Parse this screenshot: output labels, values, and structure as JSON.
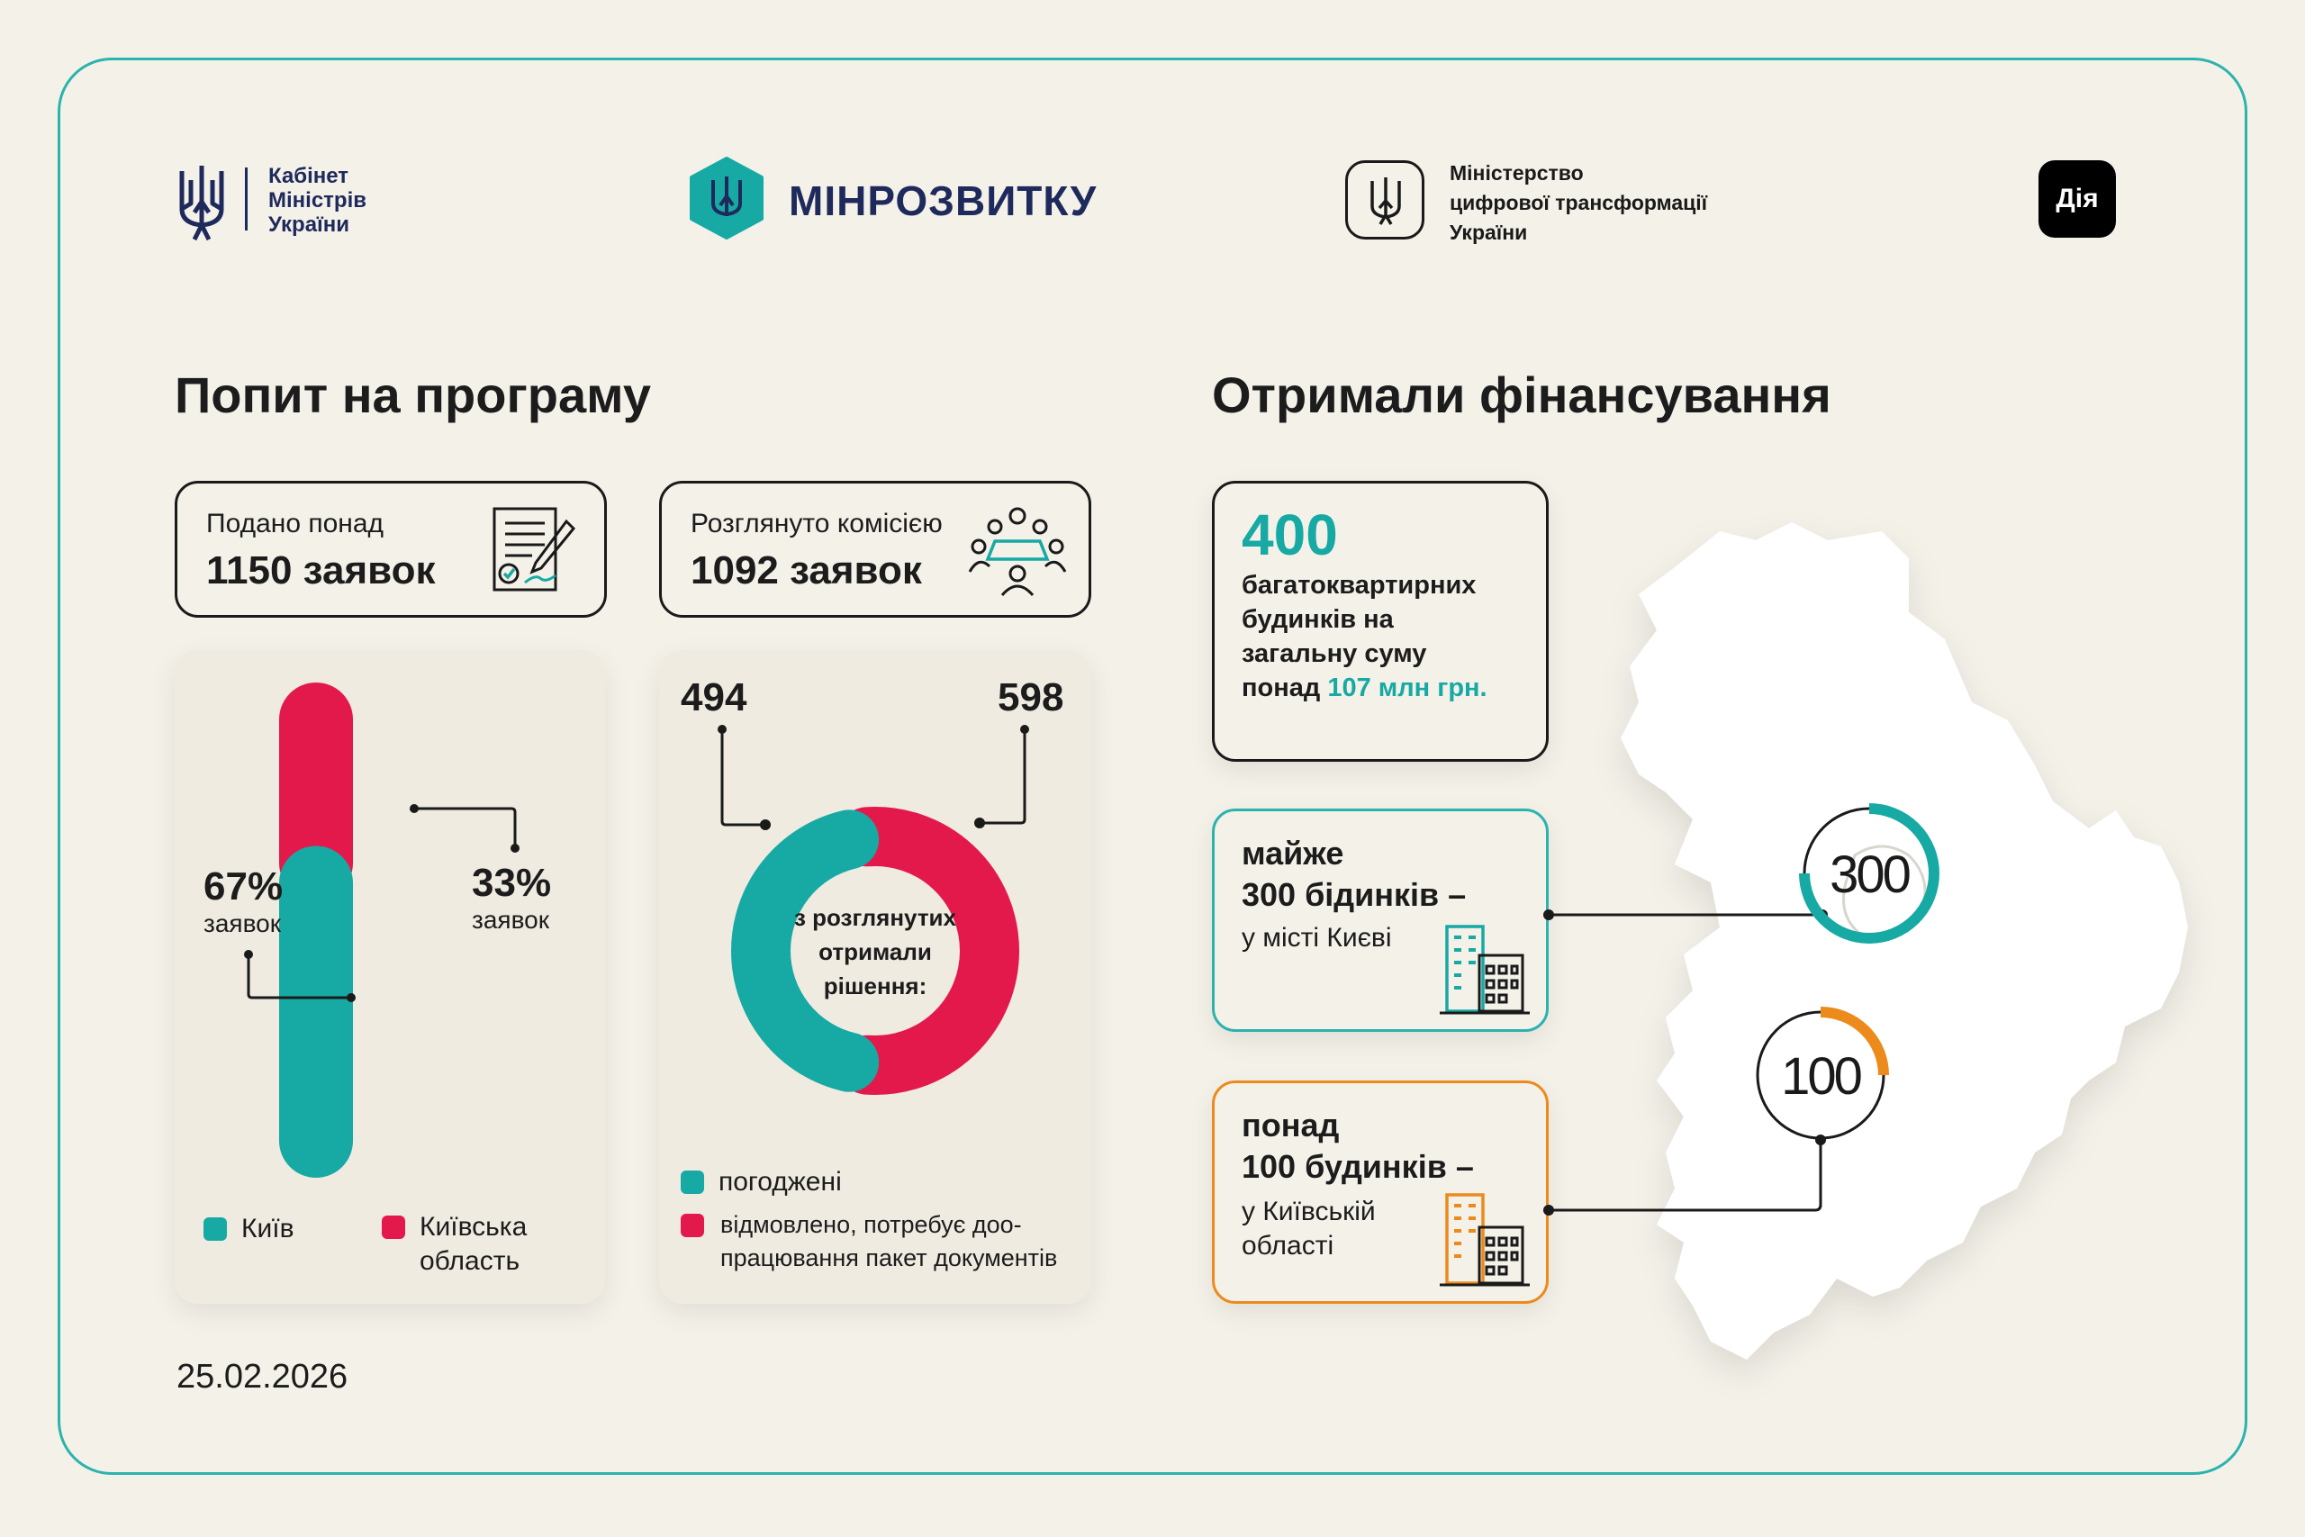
{
  "header": {
    "cabinet_logo": [
      "Кабінет",
      "Міністрів",
      "України"
    ],
    "minrozvytku_label": "МІНРОЗВИТКУ",
    "ministry_digital": [
      "Міністерство",
      "цифрової трансформації",
      "України"
    ],
    "diia_label": "Дія"
  },
  "demand": {
    "title": "Попит на програму",
    "submitted_label": "Подано понад",
    "submitted_value": "1150 заявок",
    "reviewed_label": "Розглянуто комісією",
    "reviewed_value": "1092 заявок",
    "kyiv_pct": "67%",
    "kyiv_pct_unit": "заявок",
    "region_pct": "33%",
    "region_pct_unit": "заявок",
    "legend_kyiv": "Київ",
    "legend_region_line1": "Київська",
    "legend_region_line2": "область",
    "donut_left_value": "494",
    "donut_right_value": "598",
    "donut_center": [
      "з розглянутих",
      "отримали",
      "рішення:"
    ],
    "legend_approved": "погоджені",
    "legend_rejected_line1": "відмовлено, потребує доо-",
    "legend_rejected_line2": "працювання пакет документів",
    "date": "25.02.2026"
  },
  "funding": {
    "title": "Отримали фінансування",
    "total_value": "400",
    "total_text": [
      "багатоквартирних",
      "будинків на",
      "загальну суму"
    ],
    "total_sum_prefix": "понад ",
    "total_sum": "107 млн грн.",
    "kyiv_line1": "майже",
    "kyiv_line2": "300 бідинків –",
    "kyiv_line3": "у місті Києві",
    "region_line1": "понад",
    "region_line2": "100 будинків –",
    "region_line3a": "у Київській",
    "region_line3b": "області",
    "kyiv_circle_label": "300",
    "region_circle_label": "100"
  },
  "colors": {
    "teal": "#17a9a4",
    "red": "#e3194b",
    "orange": "#ec8a1c",
    "frame": "#2bb3ad"
  },
  "chart_data": [
    {
      "type": "bar",
      "categories": [
        "Київ",
        "Київська область"
      ],
      "values": [
        67,
        33
      ],
      "colors": [
        "#17a9a4",
        "#e3194b"
      ],
      "stacked": true,
      "legend_placement": "bottom"
    },
    {
      "type": "pie",
      "donut": true,
      "categories": [
        "погоджені",
        "відмовлено, потребує доопрацювання пакет документів"
      ],
      "values": [
        494,
        598
      ],
      "colors": [
        "#17a9a4",
        "#e3194b"
      ],
      "legend_placement": "bottom"
    },
    {
      "type": "pie",
      "donut": true,
      "categories": [
        "у місті Києві",
        "у Київській області"
      ],
      "values": [
        300,
        100
      ],
      "colors": [
        "#17a9a4",
        "#ec8a1c"
      ]
    }
  ]
}
